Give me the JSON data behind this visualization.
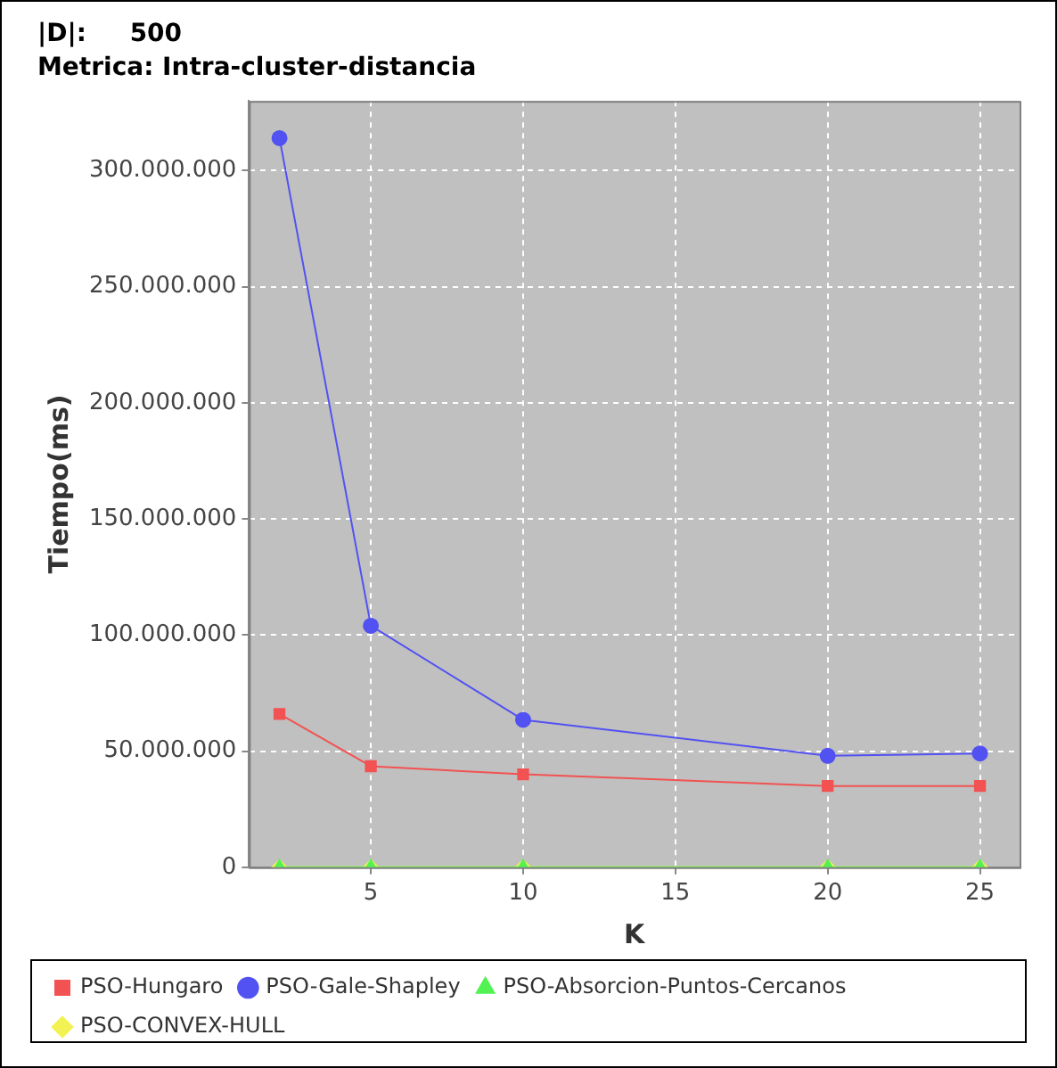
{
  "chart_data": {
    "type": "line",
    "title": "|D|:     500",
    "subtitle": "Metrica: Intra-cluster-distancia",
    "xlabel": "K",
    "ylabel": "Tiempo(ms)",
    "x": [
      2,
      5,
      10,
      20,
      25
    ],
    "series": [
      {
        "name": "PSO-Hungaro",
        "color": "#f25252",
        "marker": "square",
        "values": [
          66000000,
          43500000,
          40000000,
          35000000,
          35000000
        ]
      },
      {
        "name": "PSO-Gale-Shapley",
        "color": "#5252f2",
        "marker": "circle",
        "values": [
          314000000,
          104000000,
          63500000,
          48000000,
          49000000
        ]
      },
      {
        "name": "PSO-Absorcion-Puntos-Cercanos",
        "color": "#52f252",
        "marker": "triangle",
        "values": [
          0,
          0,
          0,
          0,
          0
        ]
      },
      {
        "name": "PSO-CONVEX-HULL",
        "color": "#f2f252",
        "marker": "diamond",
        "values": [
          0,
          0,
          0,
          0,
          0
        ]
      }
    ],
    "xlim": [
      1,
      26.3
    ],
    "xticks": [
      5,
      10,
      15,
      20,
      25
    ],
    "ylim": [
      0,
      330000000
    ],
    "yticks": [
      0,
      {
        "value": 50000000,
        "label": "50.000.000"
      },
      {
        "value": 100000000,
        "label": "100.000.000"
      },
      {
        "value": 150000000,
        "label": "150.000.000"
      },
      {
        "value": 200000000,
        "label": "200.000.000"
      },
      {
        "value": 250000000,
        "label": "250.000.000"
      },
      {
        "value": 300000000,
        "label": "300.000.000"
      }
    ],
    "grid": true,
    "legend": "bottom"
  }
}
